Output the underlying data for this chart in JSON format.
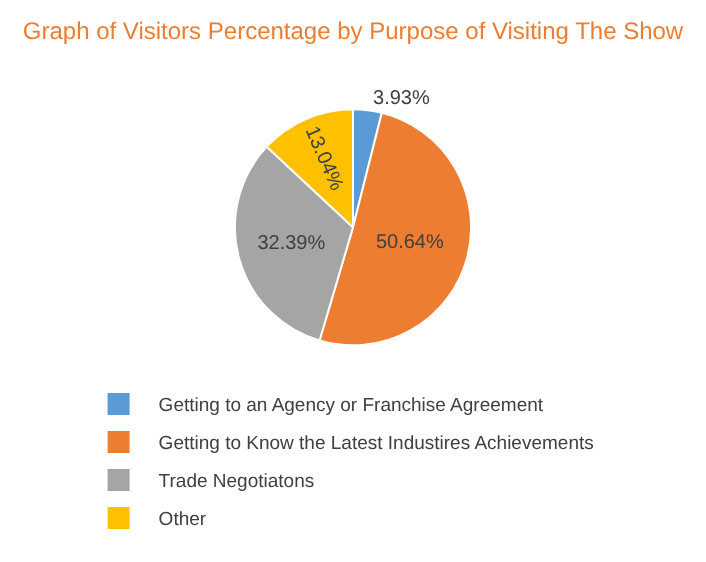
{
  "chart_data": {
    "type": "pie",
    "title": "Graph of Visitors Percentage by Purpose of Visiting The Show",
    "categories": [
      "Getting to an Agency or Franchise Agreement",
      "Getting to Know the Latest Industires Achievements",
      "Trade Negotiatons",
      "Other"
    ],
    "values": [
      3.93,
      50.64,
      32.39,
      13.04
    ],
    "colors": [
      "#5b9bd5",
      "#ed7d31",
      "#a5a5a5",
      "#ffc000"
    ],
    "value_labels": [
      "3.93%",
      "50.64%",
      "32.39%",
      "13.04%"
    ],
    "legend": "bottom"
  }
}
